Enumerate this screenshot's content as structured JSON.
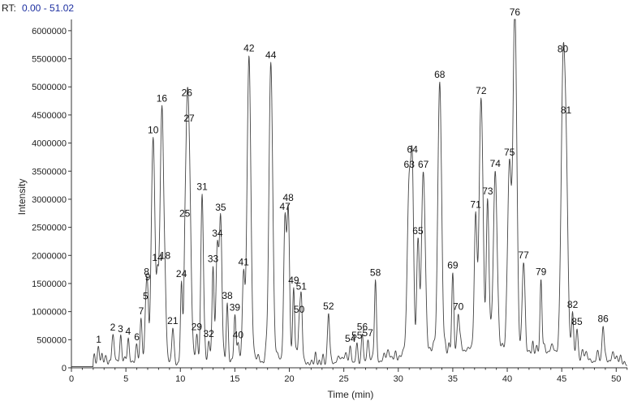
{
  "header": {
    "rt_prefix": "RT:",
    "rt_range": "0.00 - 51.02"
  },
  "chart_data": {
    "type": "line",
    "title": "",
    "xlabel": "Time (min)",
    "ylabel": "Intensity",
    "xlim": [
      0,
      51.02
    ],
    "ylim": [
      0,
      6200000
    ],
    "grid": false,
    "legend": "none",
    "line_color": "#444444",
    "x_ticks": [
      0,
      5,
      10,
      15,
      20,
      25,
      30,
      35,
      40,
      45,
      50
    ],
    "x_tick_labels": [
      "0",
      "5",
      "10",
      "15",
      "20",
      "25",
      "30",
      "35",
      "40",
      "45",
      "50"
    ],
    "y_ticks": [
      0,
      500000,
      1000000,
      1500000,
      2000000,
      2500000,
      3000000,
      3500000,
      4000000,
      4500000,
      5000000,
      5500000,
      6000000
    ],
    "y_tick_labels": [
      "0",
      "500000",
      "1000000",
      "1500000",
      "2000000",
      "2500000",
      "3000000",
      "3500000",
      "4000000",
      "4500000",
      "5000000",
      "5500000",
      "6000000"
    ],
    "peaks": [
      {
        "label": "1",
        "x": 2.5,
        "y": 180000
      },
      {
        "label": "2",
        "x": 3.8,
        "y": 300000
      },
      {
        "label": "3",
        "x": 4.5,
        "y": 280000
      },
      {
        "label": "4",
        "x": 5.2,
        "y": 300000
      },
      {
        "label": "5",
        "x": 6.8,
        "y": 620000
      },
      {
        "label": "6",
        "x": 6.0,
        "y": 250000
      },
      {
        "label": "7",
        "x": 6.4,
        "y": 720000
      },
      {
        "label": "8",
        "x": 6.9,
        "y": 650000
      },
      {
        "label": "9",
        "x": 7.0,
        "y": 850000
      },
      {
        "label": "10",
        "x": 7.5,
        "y": 4000000
      },
      {
        "label": "14",
        "x": 7.9,
        "y": 1200000
      },
      {
        "label": "16",
        "x": 8.3,
        "y": 4500000
      },
      {
        "label": "18",
        "x": 8.6,
        "y": 750000
      },
      {
        "label": "21",
        "x": 9.3,
        "y": 650000
      },
      {
        "label": "24",
        "x": 10.1,
        "y": 1300000
      },
      {
        "label": "25",
        "x": 10.4,
        "y": 1500000
      },
      {
        "label": "26",
        "x": 10.6,
        "y": 2700000
      },
      {
        "label": "27",
        "x": 10.8,
        "y": 3450000
      },
      {
        "label": "29",
        "x": 11.5,
        "y": 420000
      },
      {
        "label": "31",
        "x": 12.0,
        "y": 3000000
      },
      {
        "label": "32",
        "x": 12.6,
        "y": 300000
      },
      {
        "label": "33",
        "x": 13.0,
        "y": 1500000
      },
      {
        "label": "34",
        "x": 13.4,
        "y": 1900000
      },
      {
        "label": "35",
        "x": 13.7,
        "y": 2400000
      },
      {
        "label": "38",
        "x": 14.3,
        "y": 1000000
      },
      {
        "label": "39",
        "x": 15.0,
        "y": 700000
      },
      {
        "label": "40",
        "x": 15.3,
        "y": 300000
      },
      {
        "label": "41",
        "x": 15.8,
        "y": 1600000
      },
      {
        "label": "42",
        "x": 16.3,
        "y": 5450000
      },
      {
        "label": "44",
        "x": 18.3,
        "y": 5350000
      },
      {
        "label": "47",
        "x": 19.6,
        "y": 2500000
      },
      {
        "label": "48",
        "x": 19.9,
        "y": 2700000
      },
      {
        "label": "49",
        "x": 20.4,
        "y": 1250000
      },
      {
        "label": "50",
        "x": 20.9,
        "y": 700000
      },
      {
        "label": "51",
        "x": 21.1,
        "y": 1150000
      },
      {
        "label": "52",
        "x": 23.6,
        "y": 900000
      },
      {
        "label": "54",
        "x": 25.6,
        "y": 250000
      },
      {
        "label": "55",
        "x": 26.2,
        "y": 350000
      },
      {
        "label": "56",
        "x": 26.7,
        "y": 500000
      },
      {
        "label": "57",
        "x": 27.2,
        "y": 350000
      },
      {
        "label": "58",
        "x": 27.9,
        "y": 1400000
      },
      {
        "label": "63",
        "x": 31.0,
        "y": 3100000
      },
      {
        "label": "64",
        "x": 31.3,
        "y": 2900000
      },
      {
        "label": "65",
        "x": 31.8,
        "y": 1900000
      },
      {
        "label": "67",
        "x": 32.3,
        "y": 3200000
      },
      {
        "label": "68",
        "x": 33.8,
        "y": 4800000
      },
      {
        "label": "69",
        "x": 35.0,
        "y": 1350000
      },
      {
        "label": "70",
        "x": 35.5,
        "y": 650000
      },
      {
        "label": "71",
        "x": 37.1,
        "y": 2300000
      },
      {
        "label": "72",
        "x": 37.6,
        "y": 4450000
      },
      {
        "label": "73",
        "x": 38.2,
        "y": 2600000
      },
      {
        "label": "74",
        "x": 38.9,
        "y": 3150000
      },
      {
        "label": "75",
        "x": 40.2,
        "y": 3300000
      },
      {
        "label": "76",
        "x": 40.7,
        "y": 6100000
      },
      {
        "label": "77",
        "x": 41.5,
        "y": 1600000
      },
      {
        "label": "79",
        "x": 43.1,
        "y": 1250000
      },
      {
        "label": "80",
        "x": 45.1,
        "y": 4650000
      },
      {
        "label": "81",
        "x": 45.4,
        "y": 3300000
      },
      {
        "label": "82",
        "x": 46.0,
        "y": 800000
      },
      {
        "label": "85",
        "x": 46.4,
        "y": 600000
      },
      {
        "label": "86",
        "x": 48.8,
        "y": 630000
      }
    ]
  }
}
